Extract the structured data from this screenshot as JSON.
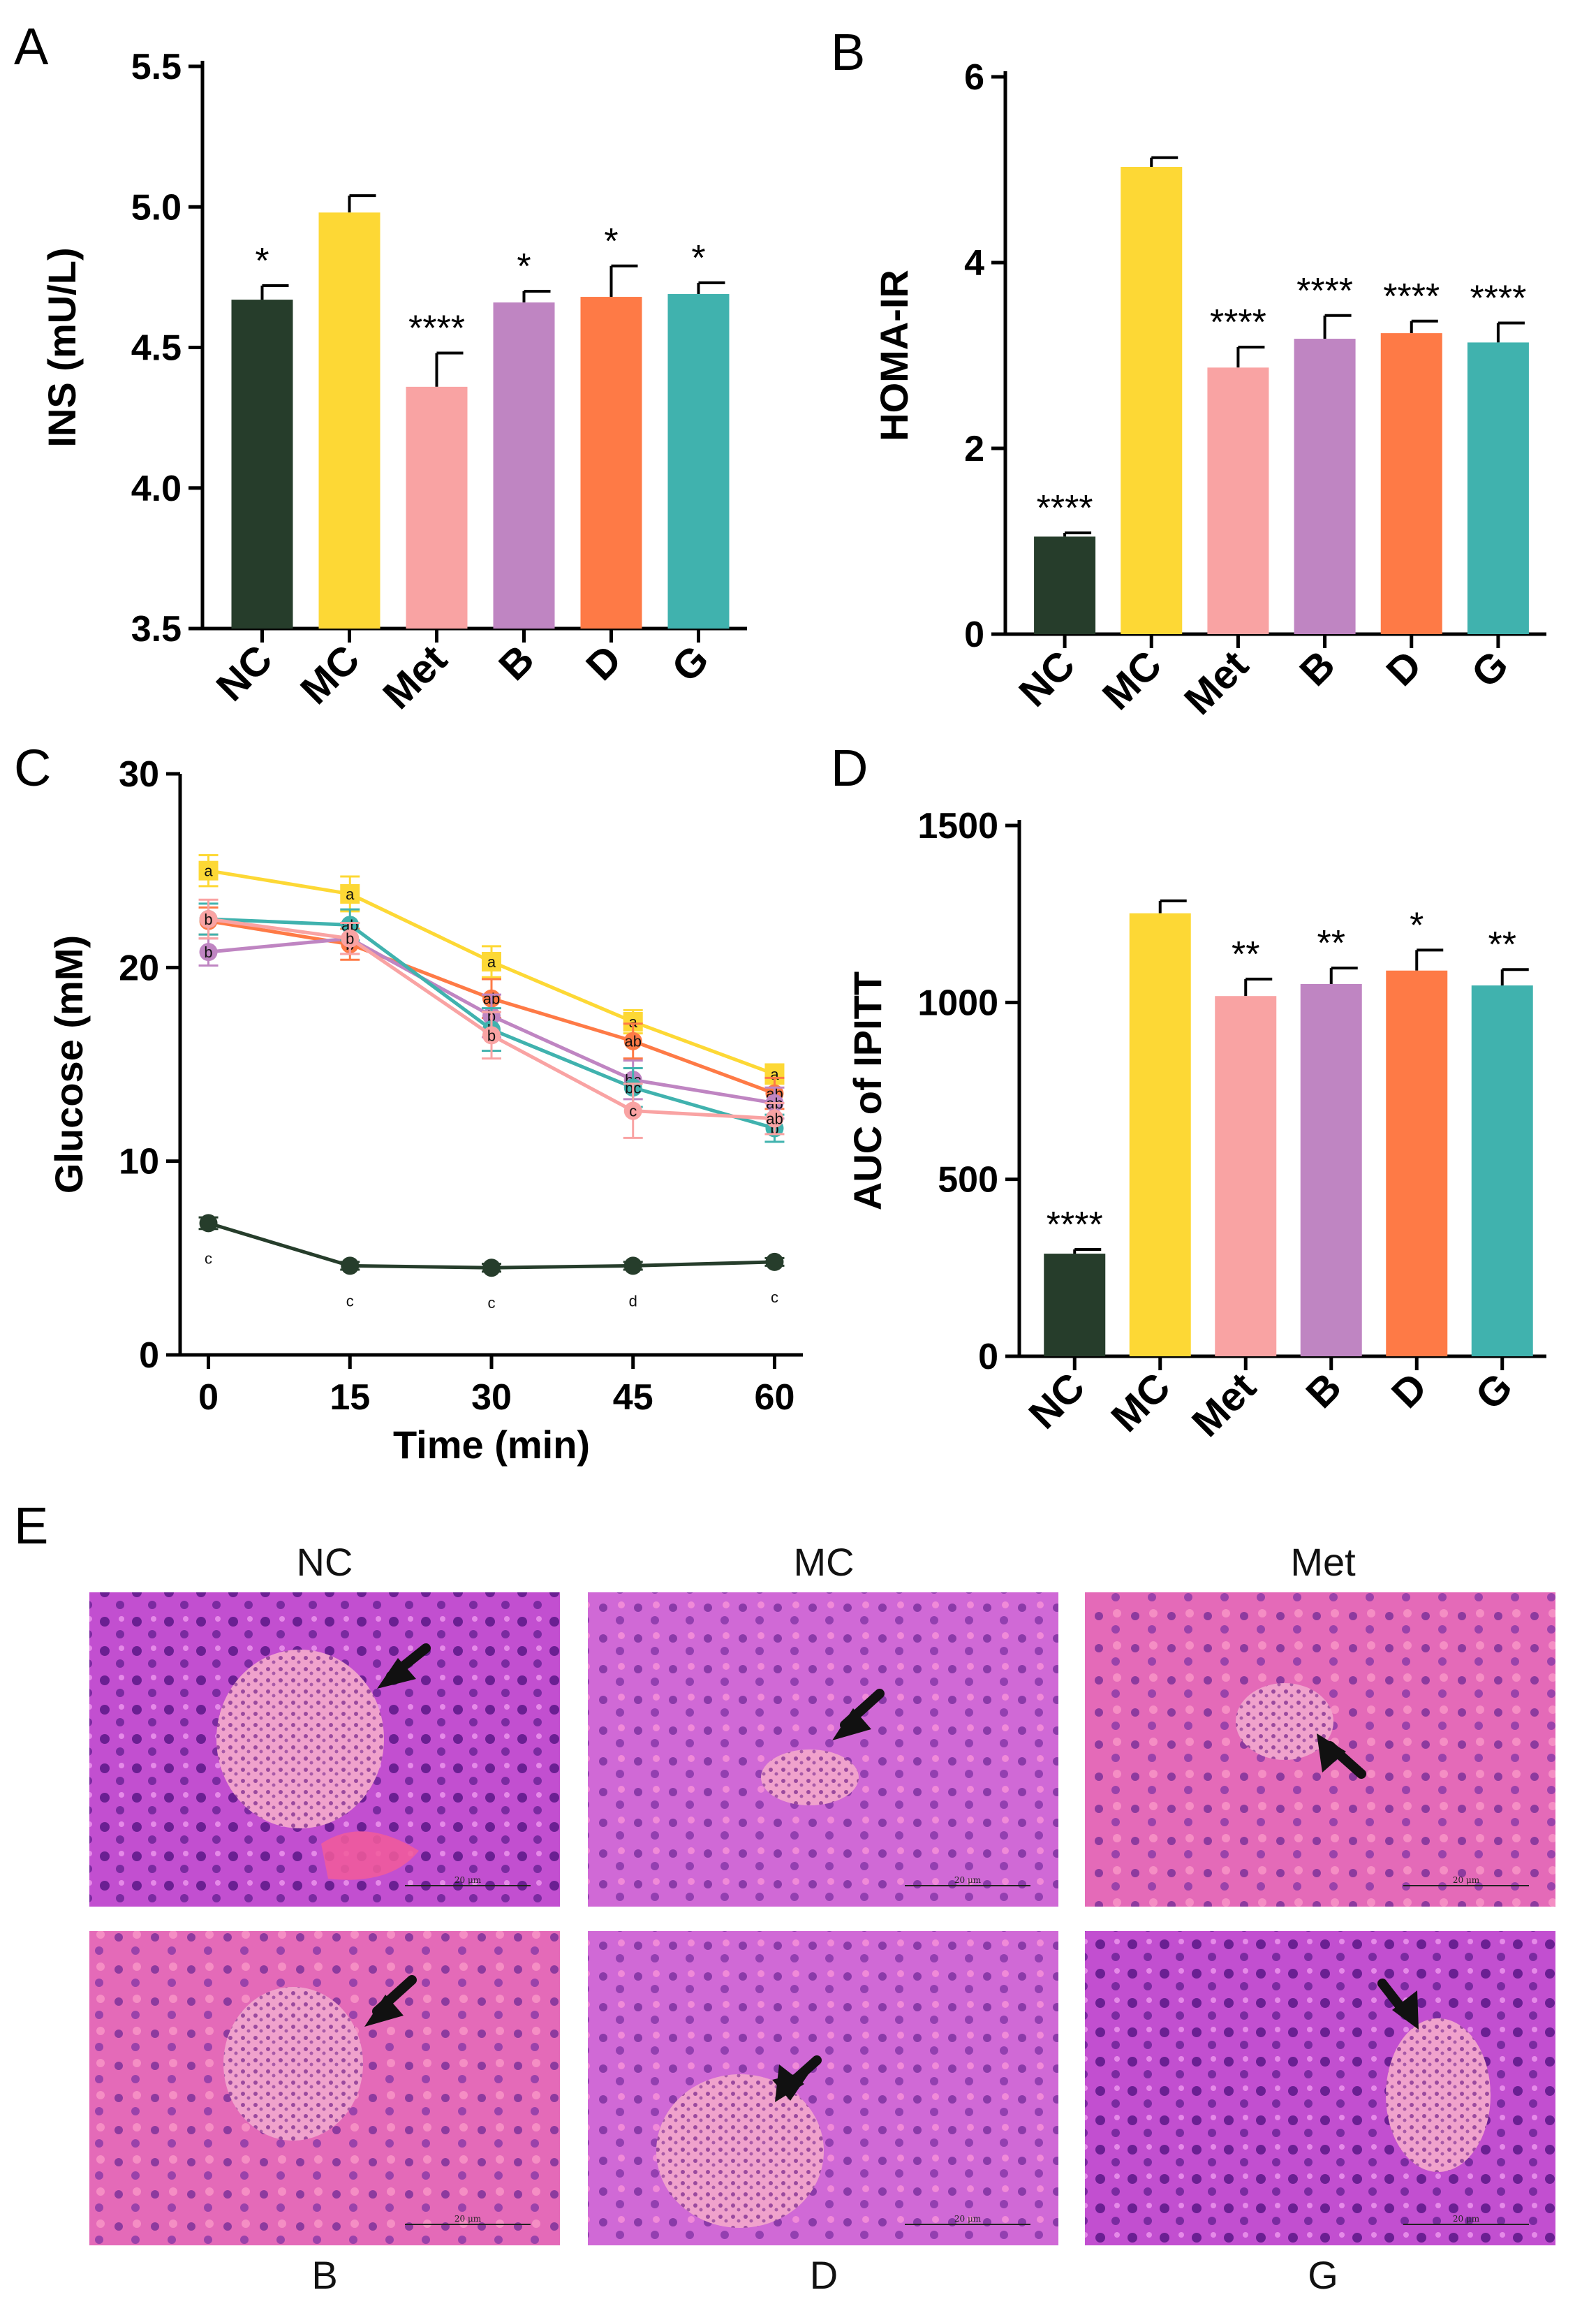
{
  "groups": [
    "NC",
    "MC",
    "Met",
    "B",
    "D",
    "G"
  ],
  "colors": {
    "NC": "#263d2b",
    "MC": "#fdd835",
    "Met": "#f9a3a3",
    "B": "#bf85c2",
    "D": "#fe7a46",
    "G": "#40b2ae"
  },
  "panel_labels": [
    "A",
    "B",
    "C",
    "D",
    "E"
  ],
  "chart_data": [
    {
      "panel": "A",
      "type": "bar",
      "categories": [
        "NC",
        "MC",
        "Met",
        "B",
        "D",
        "G"
      ],
      "values": [
        4.67,
        4.98,
        4.36,
        4.66,
        4.68,
        4.69
      ],
      "errors": [
        0.05,
        0.06,
        0.12,
        0.04,
        0.11,
        0.04
      ],
      "significance": [
        "*",
        "",
        "****",
        "*",
        "*",
        "*"
      ],
      "ylabel": "INS (mU/L)",
      "ylim": [
        3.5,
        5.5
      ],
      "yticks": [
        3.5,
        4.0,
        4.5,
        5.0,
        5.5
      ],
      "ytick_labels": [
        "3.5",
        "4.0",
        "4.5",
        "5.0",
        "5.5"
      ]
    },
    {
      "panel": "B",
      "type": "bar",
      "categories": [
        "NC",
        "MC",
        "Met",
        "B",
        "D",
        "G"
      ],
      "values": [
        1.05,
        5.03,
        2.87,
        3.18,
        3.24,
        3.14
      ],
      "errors": [
        0.04,
        0.1,
        0.22,
        0.25,
        0.13,
        0.21
      ],
      "significance": [
        "****",
        "",
        "****",
        "****",
        "****",
        "****"
      ],
      "ylabel": "HOMA-IR",
      "ylim": [
        0,
        6
      ],
      "yticks": [
        0,
        2,
        4,
        6
      ],
      "ytick_labels": [
        "0",
        "2",
        "4",
        "6"
      ]
    },
    {
      "panel": "C",
      "type": "line",
      "x": [
        0,
        15,
        30,
        45,
        60
      ],
      "series": [
        {
          "name": "NC",
          "values": [
            6.8,
            4.6,
            4.5,
            4.6,
            4.8
          ],
          "errors": [
            0.3,
            0.2,
            0.2,
            0.2,
            0.2
          ],
          "letters": [
            "c",
            "c",
            "c",
            "d",
            "c"
          ]
        },
        {
          "name": "MC",
          "values": [
            25.0,
            23.8,
            20.3,
            17.2,
            14.5
          ],
          "errors": [
            0.8,
            0.9,
            0.8,
            0.6,
            0.5
          ],
          "letters": [
            "a",
            "a",
            "a",
            "a",
            "a"
          ]
        },
        {
          "name": "Met",
          "values": [
            22.5,
            21.5,
            16.5,
            12.6,
            12.2
          ],
          "errors": [
            1.0,
            0.8,
            1.2,
            1.4,
            0.8
          ],
          "letters": [
            "b",
            "b",
            "b",
            "c",
            "ab"
          ]
        },
        {
          "name": "B",
          "values": [
            20.8,
            21.5,
            17.5,
            14.2,
            13.0
          ],
          "errors": [
            0.7,
            0.8,
            1.1,
            1.0,
            0.8
          ],
          "letters": [
            "b",
            "b",
            "b",
            "bc",
            "ab"
          ]
        },
        {
          "name": "D",
          "values": [
            22.4,
            21.2,
            18.4,
            16.2,
            13.5
          ],
          "errors": [
            0.7,
            0.8,
            1.0,
            0.9,
            0.8
          ],
          "letters": [
            "b",
            "b",
            "ab",
            "ab",
            "ab"
          ]
        },
        {
          "name": "G",
          "values": [
            22.5,
            22.2,
            16.8,
            13.8,
            11.7
          ],
          "errors": [
            0.8,
            0.8,
            1.1,
            1.0,
            0.7
          ],
          "letters": [
            "b",
            "ab",
            "b",
            "bc",
            "b"
          ]
        }
      ],
      "xlabel": "Time (min)",
      "ylabel": "Glucose (mM)",
      "xlim": [
        -3,
        63
      ],
      "ylim": [
        0,
        30
      ],
      "xticks": [
        0,
        15,
        30,
        45,
        60
      ],
      "xtick_labels": [
        "0",
        "15",
        "30",
        "45",
        "60"
      ],
      "yticks": [
        0,
        10,
        20,
        30
      ],
      "ytick_labels": [
        "0",
        "10",
        "20",
        "30"
      ]
    },
    {
      "panel": "D",
      "type": "bar",
      "categories": [
        "NC",
        "MC",
        "Met",
        "B",
        "D",
        "G"
      ],
      "values": [
        290,
        1252,
        1018,
        1052,
        1090,
        1048
      ],
      "errors": [
        12,
        35,
        48,
        45,
        58,
        45
      ],
      "significance": [
        "****",
        "",
        "**",
        "**",
        "*",
        "**"
      ],
      "ylabel": "AUC of IPITT",
      "ylim": [
        0,
        1500
      ],
      "yticks": [
        0,
        500,
        1000,
        1500
      ],
      "ytick_labels": [
        "0",
        "500",
        "1000",
        "1500"
      ]
    }
  ],
  "histology": {
    "top_labels": [
      "NC",
      "MC",
      "Met"
    ],
    "bottom_labels": [
      "B",
      "D",
      "G"
    ],
    "scale_bar": "20 μm"
  }
}
